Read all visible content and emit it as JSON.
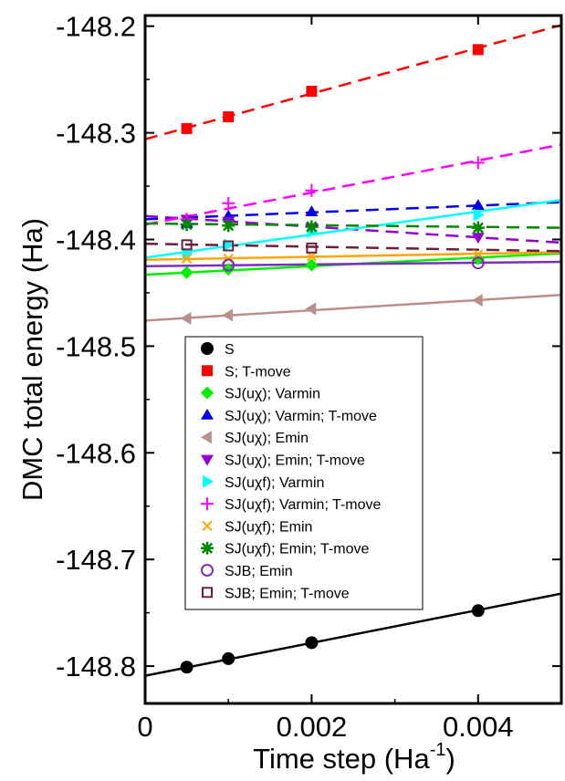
{
  "chart_data": {
    "type": "scatter",
    "xlabel": "Time step (Ha",
    "xlabel_sup": "-1",
    "xlabel_close": ")",
    "ylabel": "DMC total energy (Ha)",
    "xlim": [
      0,
      0.005
    ],
    "ylim": [
      -148.835,
      -148.19
    ],
    "xticks": [
      0,
      0.002,
      0.004
    ],
    "xtick_labels": [
      "0",
      "0.002",
      "0.004"
    ],
    "yticks": [
      -148.8,
      -148.7,
      -148.6,
      -148.5,
      -148.4,
      -148.3,
      -148.2
    ],
    "ytick_labels": [
      "-148.8",
      "-148.7",
      "-148.6",
      "-148.5",
      "-148.4",
      "-148.3",
      "-148.2"
    ],
    "legend_position": "lower-left",
    "series": [
      {
        "name": "S",
        "marker": "circle-filled",
        "color": "#000000",
        "dashed": false,
        "x": [
          0.0005,
          0.001,
          0.002,
          0.004
        ],
        "y": [
          -148.801,
          -148.793,
          -148.778,
          -148.748
        ],
        "fit": [
          -148.809,
          -148.732
        ]
      },
      {
        "name": "S; T-move",
        "marker": "square-filled",
        "color": "#ff0000",
        "dashed": true,
        "x": [
          0.0005,
          0.001,
          0.002,
          0.004
        ],
        "y": [
          -148.296,
          -148.285,
          -148.261,
          -148.222
        ],
        "fit": [
          -148.306,
          -148.199
        ]
      },
      {
        "name": "SJ(uχ); Varmin",
        "marker": "diamond-filled",
        "color": "#00ee00",
        "dashed": false,
        "x": [
          0.0005,
          0.001,
          0.002,
          0.004
        ],
        "y": [
          -148.431,
          -148.428,
          -148.424,
          -148.418
        ],
        "fit": [
          -148.433,
          -148.413
        ]
      },
      {
        "name": "SJ(uχ); Varmin; T-move",
        "marker": "triangle-up",
        "color": "#0000ee",
        "dashed": true,
        "x": [
          0.0005,
          0.001,
          0.002,
          0.004
        ],
        "y": [
          -148.385,
          -148.378,
          -148.374,
          -148.368
        ],
        "fit": [
          -148.381,
          -148.365
        ]
      },
      {
        "name": "SJ(uχ); Emin",
        "marker": "triangle-left",
        "color": "#bc8f8f",
        "dashed": false,
        "x": [
          0.0005,
          0.001,
          0.002,
          0.004
        ],
        "y": [
          -148.474,
          -148.471,
          -148.465,
          -148.457
        ],
        "fit": [
          -148.476,
          -148.452
        ]
      },
      {
        "name": "SJ(uχ); Emin; T-move",
        "marker": "triangle-down",
        "color": "#9400d3",
        "dashed": true,
        "x": [
          0.0005,
          0.001,
          0.002,
          0.004
        ],
        "y": [
          -148.381,
          -148.383,
          -148.389,
          -148.398
        ],
        "fit": [
          -148.378,
          -148.403
        ]
      },
      {
        "name": "SJ(uχf); Varmin",
        "marker": "triangle-right",
        "color": "#00ffff",
        "dashed": false,
        "x": [
          0.0005,
          0.001,
          0.002,
          0.004
        ],
        "y": [
          -148.413,
          -148.405,
          -148.393,
          -148.377
        ],
        "fit": [
          -148.417,
          -148.363
        ]
      },
      {
        "name": "SJ(uχf); Varmin; T-move",
        "marker": "plus",
        "color": "#ff00ff",
        "dashed": true,
        "x": [
          0.0005,
          0.001,
          0.002,
          0.004
        ],
        "y": [
          -148.381,
          -148.366,
          -148.354,
          -148.328
        ],
        "fit": [
          -148.386,
          -148.311
        ]
      },
      {
        "name": "SJ(uχf); Emin",
        "marker": "cross",
        "color": "#ffa500",
        "dashed": false,
        "x": [
          0.0005,
          0.001,
          0.002,
          0.004
        ],
        "y": [
          -148.418,
          -148.418,
          -148.416,
          -148.414
        ],
        "fit": [
          -148.419,
          -148.412
        ]
      },
      {
        "name": "SJ(uχf); Emin; T-move",
        "marker": "asterisk",
        "color": "#008800",
        "dashed": true,
        "x": [
          0.0005,
          0.001,
          0.002,
          0.004
        ],
        "y": [
          -148.386,
          -148.387,
          -148.388,
          -148.389
        ],
        "fit": [
          -148.385,
          -148.389
        ]
      },
      {
        "name": "SJB; Emin",
        "marker": "circle-open",
        "color": "#7b2fbe",
        "dashed": false,
        "x": [
          0.001,
          0.004
        ],
        "y": [
          -148.424,
          -148.422
        ],
        "fit": [
          -148.425,
          -148.421
        ]
      },
      {
        "name": "SJB; Emin; T-move",
        "marker": "square-open",
        "color": "#6e1e3c",
        "dashed": true,
        "x": [
          0.0005,
          0.001,
          0.002
        ],
        "y": [
          -148.405,
          -148.406,
          -148.408
        ],
        "fit": [
          -148.404,
          -148.411
        ]
      }
    ]
  }
}
